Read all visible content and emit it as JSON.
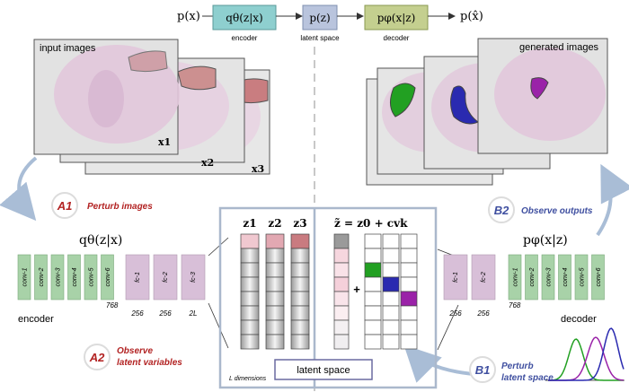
{
  "pipeline": {
    "px": "p(x)",
    "encoder_formula": "qθ(z|x)",
    "encoder_label": "encoder",
    "latent_formula": "p(z)",
    "latent_label": "latent space",
    "decoder_formula": "pφ(x|z)",
    "decoder_label": "decoder",
    "output": "p(x̂)"
  },
  "input_panel": {
    "title": "input images",
    "labels": [
      "x1",
      "x2",
      "x3"
    ]
  },
  "output_panel": {
    "title": "generated images"
  },
  "steps": {
    "a1": {
      "badge": "A1",
      "text": "Perturb images"
    },
    "a2": {
      "badge": "A2",
      "line1": "Observe",
      "line2": "latent variables"
    },
    "b1": {
      "badge": "B1",
      "line1": "Perturb",
      "line2": "latent space"
    },
    "b2": {
      "badge": "B2",
      "text": "Observe outputs"
    }
  },
  "encoder": {
    "title": "qθ(z|x)",
    "name": "encoder",
    "conv_layers": [
      "conv-1",
      "conv-2",
      "conv-3",
      "conv-4",
      "conv-5",
      "conv-6"
    ],
    "conv_dim": "768",
    "fc_layers": [
      "fc-1",
      "fc-2",
      "fc-3"
    ],
    "fc_dims": [
      "256",
      "256",
      "2L"
    ]
  },
  "decoder": {
    "title": "pφ(x|z)",
    "name": "decoder",
    "fc_layers": [
      "fc-1",
      "fc-2"
    ],
    "fc_dims": [
      "256",
      "256"
    ],
    "conv_dim": "768",
    "conv_layers": [
      "conv-1",
      "conv-2",
      "conv-3",
      "conv-4",
      "conv-5",
      "conv-6"
    ]
  },
  "latent": {
    "z_labels": [
      "z1",
      "z2",
      "z3"
    ],
    "formula": "z̃ = z0 + cvk",
    "plus": "+",
    "dims_note": "L dimensions",
    "box_label": "latent space"
  },
  "colors": {
    "encoder_box": "#8ecfcf",
    "latent_box": "#b9c4dd",
    "decoder_box": "#c4cf8f",
    "conv_layer": "#a8d2a8",
    "fc_layer": "#d8bfd8",
    "red_accent": "#b22222",
    "blue_accent": "#3f4fa0",
    "panel_border": "#aab8cc",
    "green_region": "#22a022",
    "blue_region": "#2a2ab0",
    "purple_region": "#9a22a8"
  }
}
